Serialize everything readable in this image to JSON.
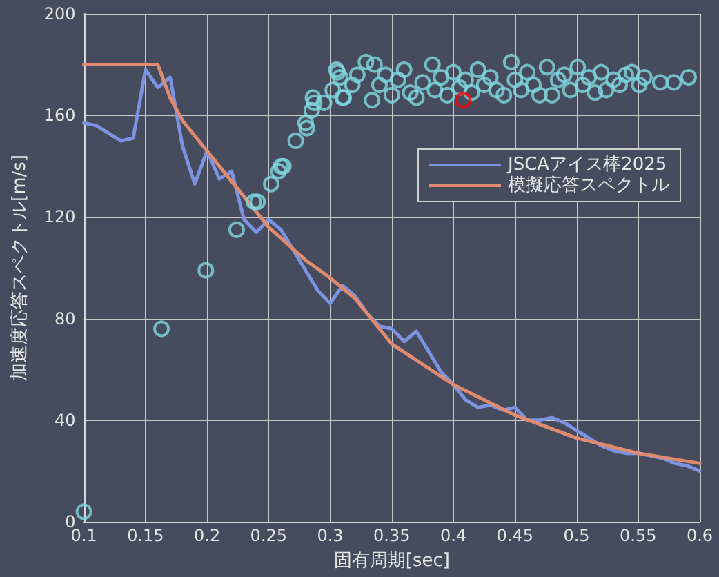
{
  "chart_data": {
    "type": "line",
    "xlabel": "固有周期[sec]",
    "ylabel": "加速度応答スペクトル[m/s]",
    "xlim": [
      0.1,
      0.6
    ],
    "xticks": [
      0.1,
      0.15,
      0.2,
      0.25,
      0.3,
      0.35,
      0.4,
      0.45,
      0.5,
      0.55,
      0.6
    ],
    "ylim": [
      0,
      200
    ],
    "yticks": [
      0,
      40,
      80,
      120,
      160,
      200
    ],
    "grid": true,
    "legend": "top right",
    "marker": "none",
    "line_style": "solid",
    "series": [
      {
        "name": "JSCAアイス棒2025",
        "color": "#7b93e0",
        "x": [
          0.1,
          0.11,
          0.13,
          0.14,
          0.15,
          0.16,
          0.17,
          0.18,
          0.19,
          0.2,
          0.21,
          0.22,
          0.23,
          0.24,
          0.25,
          0.26,
          0.27,
          0.28,
          0.29,
          0.3,
          0.31,
          0.32,
          0.33,
          0.34,
          0.35,
          0.36,
          0.37,
          0.38,
          0.39,
          0.4,
          0.41,
          0.42,
          0.43,
          0.44,
          0.45,
          0.46,
          0.47,
          0.48,
          0.49,
          0.5,
          0.51,
          0.52,
          0.53,
          0.54,
          0.55,
          0.56,
          0.57,
          0.58,
          0.59,
          0.6
        ],
        "values": [
          157,
          156,
          150,
          151,
          178,
          171,
          175,
          148,
          133,
          146,
          135,
          138,
          119,
          114,
          119,
          115,
          107,
          99,
          91,
          86,
          93,
          89,
          82,
          77,
          76,
          71,
          75,
          67,
          59,
          54,
          48,
          45,
          46,
          44,
          45,
          40,
          40,
          41,
          39,
          36,
          33,
          30,
          28,
          27,
          27,
          26,
          25,
          23,
          22,
          20
        ]
      },
      {
        "name": "模擬応答スペクトル",
        "color": "#e08a70",
        "x": [
          0.1,
          0.16,
          0.17,
          0.18,
          0.2,
          0.22,
          0.25,
          0.28,
          0.3,
          0.32,
          0.35,
          0.4,
          0.45,
          0.5,
          0.55,
          0.6
        ],
        "values": [
          180,
          180,
          167,
          158,
          146,
          134,
          116,
          103,
          96,
          88,
          70,
          54,
          42,
          33,
          27,
          23
        ]
      },
      {
        "type": "scatter",
        "marker": "circle",
        "color": "#7fd8e0",
        "x": [
          0.1,
          0.163,
          0.199,
          0.224,
          0.238,
          0.241,
          0.252,
          0.258,
          0.26,
          0.262,
          0.272,
          0.28,
          0.281,
          0.285,
          0.286,
          0.287,
          0.295,
          0.302,
          0.305,
          0.308,
          0.311,
          0.306,
          0.31,
          0.318,
          0.322,
          0.329,
          0.334,
          0.336,
          0.34,
          0.345,
          0.35,
          0.355,
          0.36,
          0.365,
          0.37,
          0.375,
          0.383,
          0.385,
          0.39,
          0.395,
          0.4,
          0.405,
          0.41,
          0.415,
          0.42,
          0.425,
          0.43,
          0.435,
          0.441,
          0.447,
          0.45,
          0.455,
          0.46,
          0.465,
          0.47,
          0.476,
          0.48,
          0.485,
          0.49,
          0.495,
          0.501,
          0.505,
          0.51,
          0.515,
          0.52,
          0.524,
          0.53,
          0.535,
          0.54,
          0.545,
          0.551,
          0.555,
          0.568,
          0.579,
          0.591
        ],
        "values": [
          4,
          76,
          99,
          115,
          126,
          126,
          133,
          138,
          140,
          140,
          150,
          157,
          155,
          162,
          167,
          165,
          165,
          170,
          178,
          175,
          167,
          177,
          167,
          172,
          176,
          181,
          166,
          180,
          172,
          176,
          168,
          174,
          178,
          169,
          167,
          173,
          180,
          170,
          175,
          168,
          177,
          171,
          174,
          169,
          178,
          172,
          175,
          170,
          168,
          181,
          174,
          170,
          177,
          172,
          168,
          179,
          168,
          174,
          176,
          170,
          179,
          172,
          175,
          169,
          177,
          170,
          174,
          172,
          176,
          177,
          172,
          175,
          173,
          173,
          175
        ]
      },
      {
        "type": "scatter",
        "marker": "circle",
        "color": "#ff0000",
        "x": [
          0.408
        ],
        "values": [
          166
        ]
      }
    ]
  }
}
